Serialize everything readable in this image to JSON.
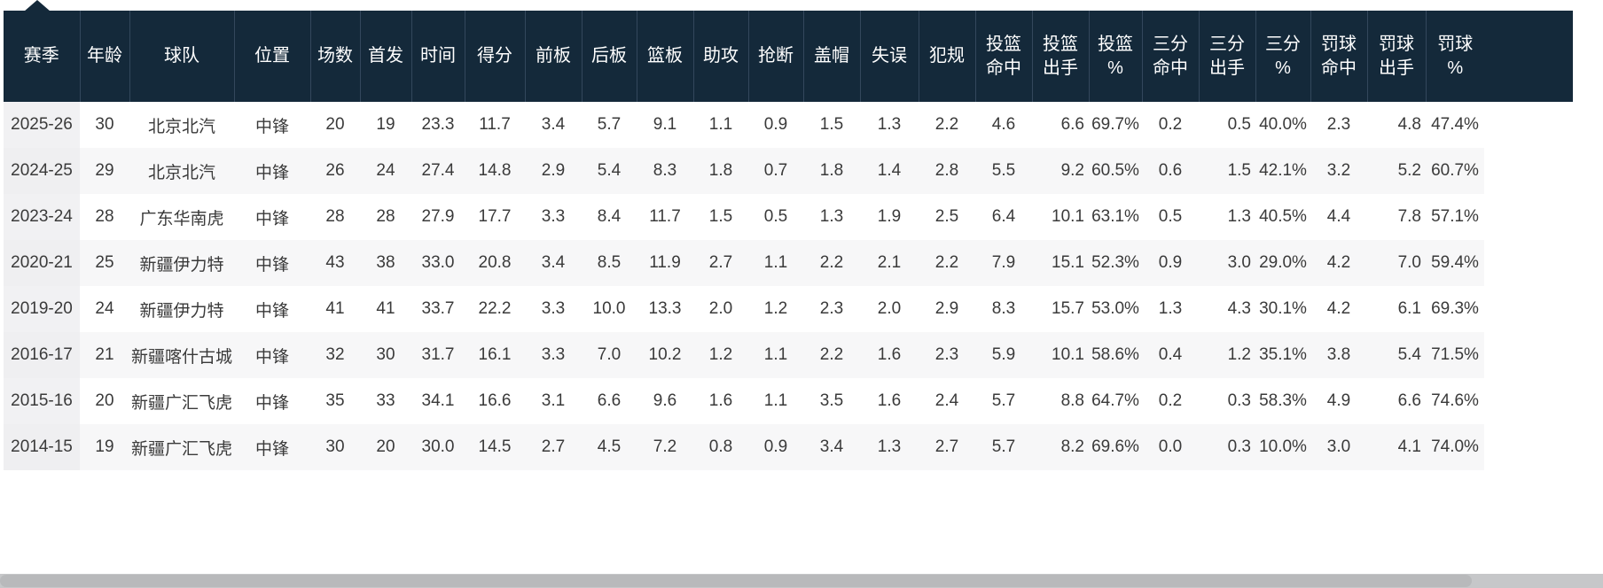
{
  "colors": {
    "header_bg": "#14293a",
    "header_divider": "#33475c",
    "header_text": "#ffffff",
    "row_stripe": "#f7f7f8",
    "season_column_bg": "#f1f1f3",
    "body_text": "#3a3a3a",
    "scrollbar": "#c6c7c9"
  },
  "table": {
    "columns": [
      {
        "key": "season",
        "label": "赛季"
      },
      {
        "key": "age",
        "label": "年龄"
      },
      {
        "key": "team",
        "label": "球队"
      },
      {
        "key": "position",
        "label": "位置"
      },
      {
        "key": "games",
        "label": "场数"
      },
      {
        "key": "starts",
        "label": "首发"
      },
      {
        "key": "minutes",
        "label": "时间"
      },
      {
        "key": "points",
        "label": "得分"
      },
      {
        "key": "off-reb",
        "label": "前板"
      },
      {
        "key": "def-reb",
        "label": "后板"
      },
      {
        "key": "rebounds",
        "label": "篮板"
      },
      {
        "key": "assists",
        "label": "助攻"
      },
      {
        "key": "steals",
        "label": "抢断"
      },
      {
        "key": "blocks",
        "label": "盖帽"
      },
      {
        "key": "turnovers",
        "label": "失误"
      },
      {
        "key": "fouls",
        "label": "犯规"
      },
      {
        "key": "fgm",
        "label": "投篮\n命中"
      },
      {
        "key": "fga",
        "label": "投篮\n出手"
      },
      {
        "key": "fg-pct",
        "label": "投篮\n%"
      },
      {
        "key": "tpm",
        "label": "三分\n命中"
      },
      {
        "key": "tpa",
        "label": "三分\n出手"
      },
      {
        "key": "tp-pct",
        "label": "三分\n%"
      },
      {
        "key": "ftm",
        "label": "罚球\n命中"
      },
      {
        "key": "fta",
        "label": "罚球\n出手"
      },
      {
        "key": "ft-pct",
        "label": "罚球\n%"
      }
    ],
    "rows": [
      [
        "2025-26",
        "30",
        "北京北汽",
        "中锋",
        "20",
        "19",
        "23.3",
        "11.7",
        "3.4",
        "5.7",
        "9.1",
        "1.1",
        "0.9",
        "1.5",
        "1.3",
        "2.2",
        "4.6",
        "6.6",
        "69.7%",
        "0.2",
        "0.5",
        "40.0%",
        "2.3",
        "4.8",
        "47.4%"
      ],
      [
        "2024-25",
        "29",
        "北京北汽",
        "中锋",
        "26",
        "24",
        "27.4",
        "14.8",
        "2.9",
        "5.4",
        "8.3",
        "1.8",
        "0.7",
        "1.8",
        "1.4",
        "2.8",
        "5.5",
        "9.2",
        "60.5%",
        "0.6",
        "1.5",
        "42.1%",
        "3.2",
        "5.2",
        "60.7%"
      ],
      [
        "2023-24",
        "28",
        "广东华南虎",
        "中锋",
        "28",
        "28",
        "27.9",
        "17.7",
        "3.3",
        "8.4",
        "11.7",
        "1.5",
        "0.5",
        "1.3",
        "1.9",
        "2.5",
        "6.4",
        "10.1",
        "63.1%",
        "0.5",
        "1.3",
        "40.5%",
        "4.4",
        "7.8",
        "57.1%"
      ],
      [
        "2020-21",
        "25",
        "新疆伊力特",
        "中锋",
        "43",
        "38",
        "33.0",
        "20.8",
        "3.4",
        "8.5",
        "11.9",
        "2.7",
        "1.1",
        "2.2",
        "2.1",
        "2.2",
        "7.9",
        "15.1",
        "52.3%",
        "0.9",
        "3.0",
        "29.0%",
        "4.2",
        "7.0",
        "59.4%"
      ],
      [
        "2019-20",
        "24",
        "新疆伊力特",
        "中锋",
        "41",
        "41",
        "33.7",
        "22.2",
        "3.3",
        "10.0",
        "13.3",
        "2.0",
        "1.2",
        "2.3",
        "2.0",
        "2.9",
        "8.3",
        "15.7",
        "53.0%",
        "1.3",
        "4.3",
        "30.1%",
        "4.2",
        "6.1",
        "69.3%"
      ],
      [
        "2016-17",
        "21",
        "新疆喀什古城",
        "中锋",
        "32",
        "30",
        "31.7",
        "16.1",
        "3.3",
        "7.0",
        "10.2",
        "1.2",
        "1.1",
        "2.2",
        "1.6",
        "2.3",
        "5.9",
        "10.1",
        "58.6%",
        "0.4",
        "1.2",
        "35.1%",
        "3.8",
        "5.4",
        "71.5%"
      ],
      [
        "2015-16",
        "20",
        "新疆广汇飞虎",
        "中锋",
        "35",
        "33",
        "34.1",
        "16.6",
        "3.1",
        "6.6",
        "9.6",
        "1.6",
        "1.1",
        "3.5",
        "1.6",
        "2.4",
        "5.7",
        "8.8",
        "64.7%",
        "0.2",
        "0.3",
        "58.3%",
        "4.9",
        "6.6",
        "74.6%"
      ],
      [
        "2014-15",
        "19",
        "新疆广汇飞虎",
        "中锋",
        "30",
        "20",
        "30.0",
        "14.5",
        "2.7",
        "4.5",
        "7.2",
        "0.8",
        "0.9",
        "3.4",
        "1.3",
        "2.7",
        "5.7",
        "8.2",
        "69.6%",
        "0.0",
        "0.3",
        "10.0%",
        "3.0",
        "4.1",
        "74.0%"
      ]
    ]
  }
}
